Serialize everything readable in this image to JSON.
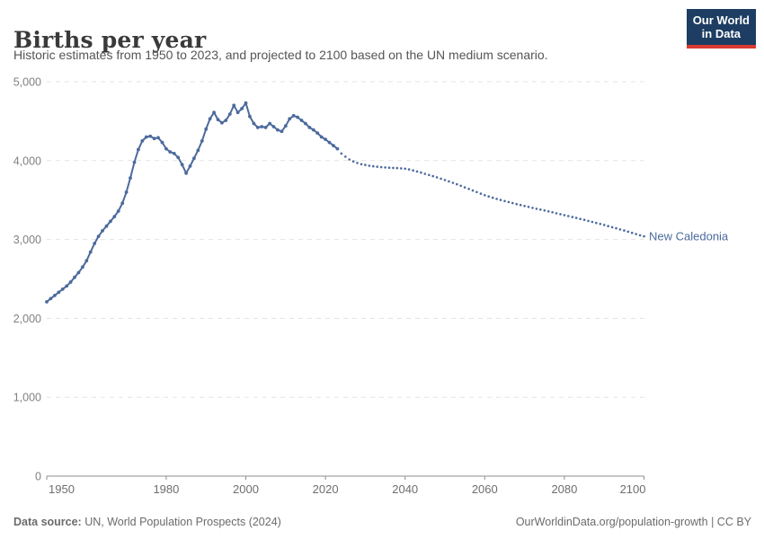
{
  "header": {
    "title": "Births per year",
    "subtitle": "Historic estimates from 1950 to 2023, and projected to 2100 based on the UN medium scenario.",
    "logo": {
      "line1": "Our World",
      "line2": "in Data"
    }
  },
  "chart_data": {
    "type": "line",
    "title": "Births per year",
    "entity": "New Caledonia",
    "series_label": "New Caledonia",
    "xlabel": "",
    "ylabel": "",
    "xlim": [
      1950,
      2100
    ],
    "ylim": [
      0,
      5000
    ],
    "x_ticks": [
      1950,
      1980,
      2000,
      2020,
      2040,
      2060,
      2080,
      2100
    ],
    "y_ticks": [
      0,
      1000,
      2000,
      3000,
      4000,
      5000
    ],
    "grid": "horizontal-dashed",
    "legend_position": "right-of-line-end",
    "series": [
      {
        "name": "New Caledonia (historic estimates)",
        "style": "solid-with-markers",
        "color": "#4C6A9C",
        "x_start": 1950,
        "values": [
          2210,
          2250,
          2290,
          2330,
          2370,
          2410,
          2460,
          2520,
          2580,
          2650,
          2730,
          2840,
          2950,
          3040,
          3110,
          3170,
          3230,
          3290,
          3360,
          3460,
          3600,
          3780,
          3980,
          4140,
          4250,
          4300,
          4310,
          4280,
          4290,
          4230,
          4150,
          4110,
          4090,
          4040,
          3950,
          3840,
          3930,
          4030,
          4130,
          4250,
          4400,
          4530,
          4610,
          4520,
          4480,
          4510,
          4590,
          4700,
          4610,
          4660,
          4730,
          4560,
          4470,
          4420,
          4430,
          4420,
          4470,
          4430,
          4390,
          4370,
          4440,
          4530,
          4570,
          4550,
          4510,
          4470,
          4420,
          4390,
          4350,
          4300,
          4270,
          4230,
          4190,
          4150
        ]
      },
      {
        "name": "New Caledonia (UN medium scenario projection)",
        "style": "dotted",
        "color": "#4C6A9C",
        "x_start": 2024,
        "values": [
          4090,
          4050,
          4015,
          3990,
          3970,
          3955,
          3945,
          3935,
          3928,
          3922,
          3917,
          3913,
          3910,
          3908,
          3905,
          3902,
          3898,
          3888,
          3876,
          3862,
          3848,
          3833,
          3818,
          3803,
          3788,
          3771,
          3754,
          3737,
          3719,
          3700,
          3681,
          3661,
          3641,
          3621,
          3601,
          3581,
          3562,
          3546,
          3530,
          3515,
          3501,
          3488,
          3475,
          3462,
          3449,
          3437,
          3425,
          3413,
          3401,
          3390,
          3379,
          3368,
          3357,
          3345,
          3333,
          3321,
          3309,
          3297,
          3285,
          3273,
          3261,
          3249,
          3236,
          3223,
          3210,
          3197,
          3184,
          3170,
          3156,
          3142,
          3128,
          3114,
          3099,
          3084,
          3069,
          3054,
          3040
        ]
      }
    ]
  },
  "footer": {
    "source_label": "Data source:",
    "source_text": " UN, World Population Prospects (2024)",
    "link_text": "OurWorldinData.org/population-growth | CC BY"
  },
  "colors": {
    "line": "#4C6A9C",
    "series_label": "#4C6A9C",
    "gridline": "#e3e3e3",
    "axis": "#8f8f8f",
    "y_tick_text": "#808080",
    "x_tick_text": "#6e6e6e",
    "logo_bg": "#1d3d63",
    "logo_stripe": "#dc3b31"
  }
}
